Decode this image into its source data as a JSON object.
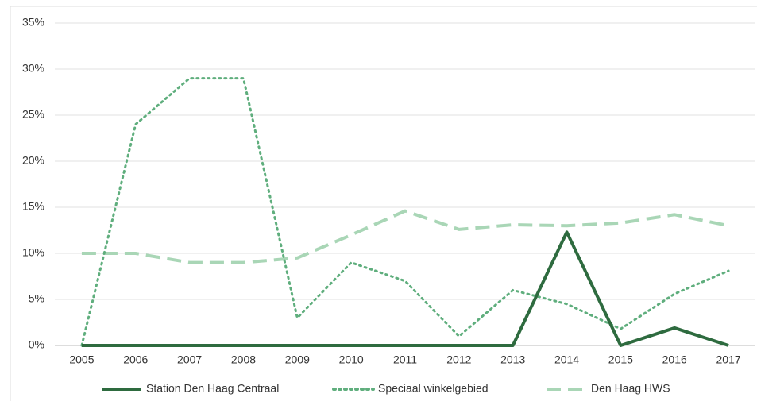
{
  "chart_data": {
    "type": "line",
    "categories": [
      "2005",
      "2006",
      "2007",
      "2008",
      "2009",
      "2010",
      "2011",
      "2012",
      "2013",
      "2014",
      "2015",
      "2016",
      "2017"
    ],
    "series": [
      {
        "name": "Station Den Haag Centraal",
        "color": "#2e6b3f",
        "style": "solid",
        "values": [
          0,
          0,
          0,
          0,
          0,
          0,
          0,
          0,
          0,
          12.3,
          0,
          1.9,
          0
        ]
      },
      {
        "name": "Speciaal winkelgebied",
        "color": "#5fae7d",
        "style": "dotted",
        "values": [
          0,
          24,
          29,
          29,
          3,
          9,
          7,
          1,
          6,
          4.5,
          1.8,
          5.6,
          8.1
        ]
      },
      {
        "name": "Den Haag HWS",
        "color": "#a9d6b6",
        "style": "dashed",
        "values": [
          10,
          10,
          9,
          9,
          9.5,
          12,
          14.6,
          12.6,
          13.1,
          13,
          13.3,
          14.2,
          13
        ]
      }
    ],
    "ylim": [
      0,
      35
    ],
    "yticks": [
      {
        "value": 0,
        "label": "0%"
      },
      {
        "value": 5,
        "label": "5%"
      },
      {
        "value": 10,
        "label": "10%"
      },
      {
        "value": 15,
        "label": "15%"
      },
      {
        "value": 20,
        "label": "20%"
      },
      {
        "value": 25,
        "label": "25%"
      },
      {
        "value": 30,
        "label": "30%"
      },
      {
        "value": 35,
        "label": "35%"
      }
    ],
    "grid": true,
    "legend": "bottom"
  }
}
